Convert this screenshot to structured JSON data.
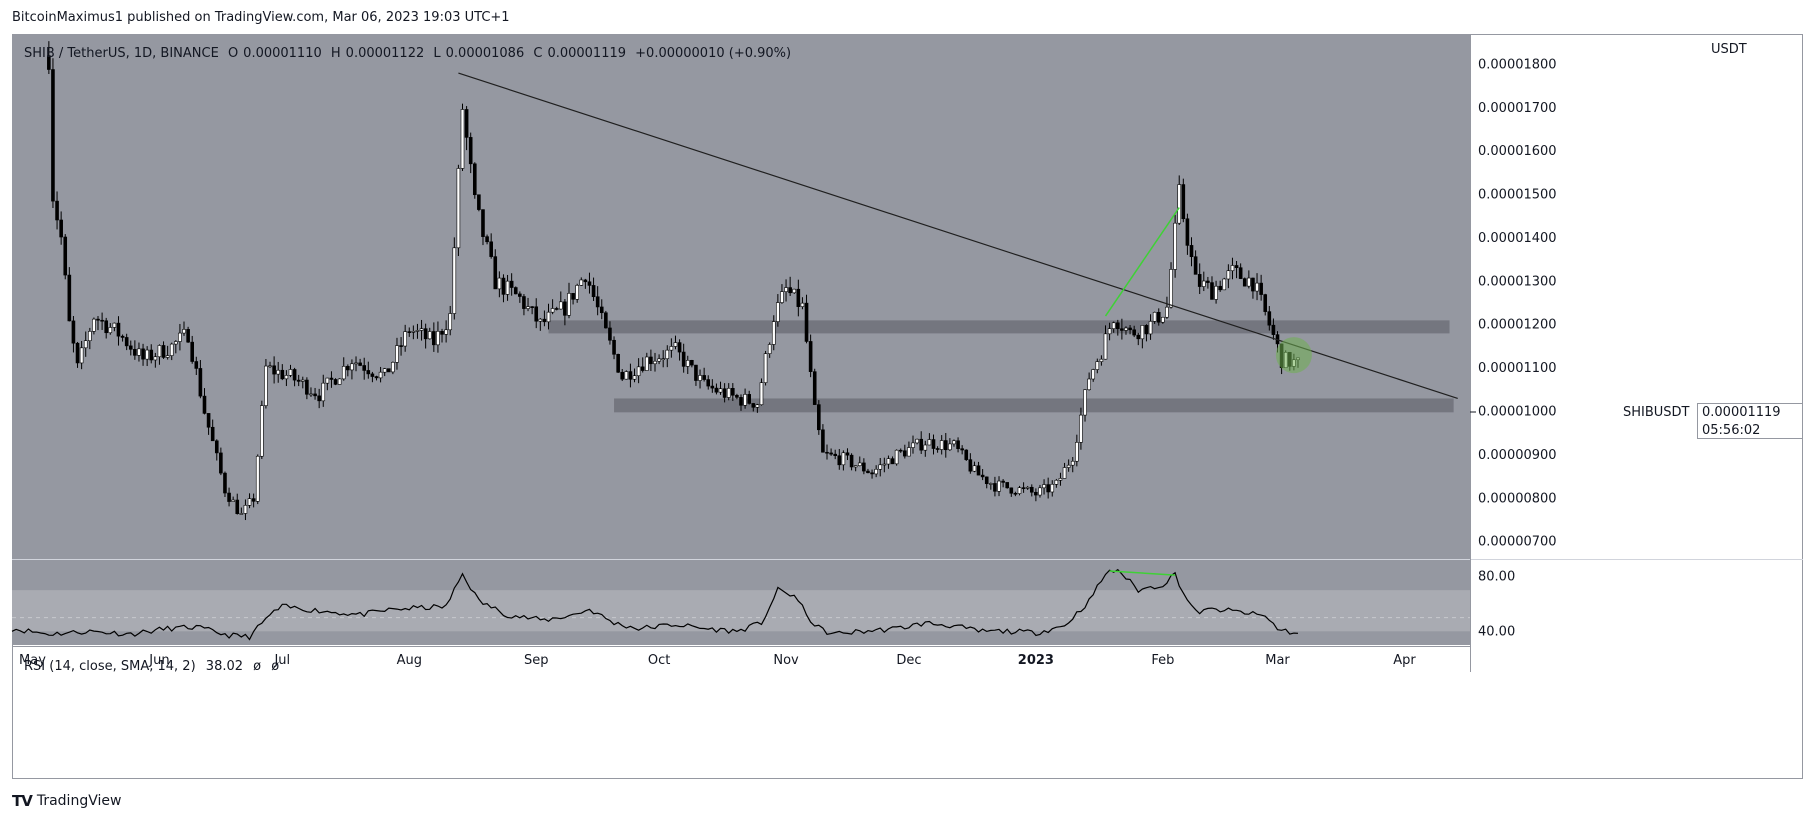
{
  "header": {
    "publish_line": "BitcoinMaximus1 published on TradingView.com, Mar 06, 2023 19:03 UTC+1"
  },
  "legend": {
    "symbol": "SHIB / TetherUS, 1D, BINANCE",
    "open_label": "O",
    "open": "0.00001110",
    "high_label": "H",
    "high": "0.00001122",
    "low_label": "L",
    "low": "0.00001086",
    "close_label": "C",
    "close": "0.00001119",
    "change": "+0.00000010 (+0.90%)"
  },
  "axis": {
    "currency": "USDT"
  },
  "price_tag": {
    "symbol": "SHIBUSDT",
    "price": "0.00001119",
    "countdown": "05:56:02"
  },
  "rsi_legend": {
    "title": "RSI (14, close, SMA, 14, 2)",
    "value": "38.02",
    "na1": "ø",
    "na2": "ø"
  },
  "footer": {
    "brand": "TradingView"
  },
  "colors": {
    "plot_bg": "#9598a1",
    "rsi_band": "#a9abb2",
    "candle": "#000000",
    "trendline": "#1f1f1f",
    "zone": "#6e7079",
    "divergence": "#3fd136",
    "circle": "#6fb052"
  },
  "chart_data": [
    {
      "type": "candlestick",
      "ylim": [
        6.6e-06,
        1.87e-05
      ],
      "y_ticks": [
        "0.00000700",
        "0.00000800",
        "0.00000900",
        "0.00001000",
        "0.00001100",
        "0.00001200",
        "0.00001300",
        "0.00001400",
        "0.00001500",
        "0.00001600",
        "0.00001700",
        "0.00001800"
      ],
      "x_ticks": [
        "May",
        "Jun",
        "Jul",
        "Aug",
        "Sep",
        "Oct",
        "Nov",
        "Dec",
        "2023",
        "Feb",
        "Mar",
        "Apr"
      ],
      "x_range": [
        "2022-04-26",
        "2023-04-17"
      ],
      "price_path": [
        [
          "2022-05-05",
          1.82e-05
        ],
        [
          "2022-05-06",
          1.5e-05
        ],
        [
          "2022-05-08",
          1.4e-05
        ],
        [
          "2022-05-10",
          1.2e-05
        ],
        [
          "2022-05-12",
          1.1e-05
        ],
        [
          "2022-05-16",
          1.22e-05
        ],
        [
          "2022-05-22",
          1.18e-05
        ],
        [
          "2022-05-28",
          1.12e-05
        ],
        [
          "2022-06-04",
          1.15e-05
        ],
        [
          "2022-06-08",
          1.18e-05
        ],
        [
          "2022-06-12",
          1e-05
        ],
        [
          "2022-06-17",
          8.2e-06
        ],
        [
          "2022-06-21",
          7.6e-06
        ],
        [
          "2022-06-24",
          8e-06
        ],
        [
          "2022-06-27",
          1.1e-05
        ],
        [
          "2022-07-03",
          1.08e-05
        ],
        [
          "2022-07-10",
          1.04e-05
        ],
        [
          "2022-07-18",
          1.12e-05
        ],
        [
          "2022-07-26",
          1.08e-05
        ],
        [
          "2022-08-01",
          1.19e-05
        ],
        [
          "2022-08-07",
          1.16e-05
        ],
        [
          "2022-08-11",
          1.22e-05
        ],
        [
          "2022-08-14",
          1.7e-05
        ],
        [
          "2022-08-17",
          1.48e-05
        ],
        [
          "2022-08-22",
          1.3e-05
        ],
        [
          "2022-08-28",
          1.26e-05
        ],
        [
          "2022-09-02",
          1.2e-05
        ],
        [
          "2022-09-08",
          1.24e-05
        ],
        [
          "2022-09-13",
          1.32e-05
        ],
        [
          "2022-09-18",
          1.18e-05
        ],
        [
          "2022-09-22",
          1.08e-05
        ],
        [
          "2022-09-28",
          1.12e-05
        ],
        [
          "2022-10-05",
          1.14e-05
        ],
        [
          "2022-10-12",
          1.06e-05
        ],
        [
          "2022-10-20",
          1.03e-05
        ],
        [
          "2022-10-25",
          1.02e-05
        ],
        [
          "2022-10-29",
          1.22e-05
        ],
        [
          "2022-11-01",
          1.28e-05
        ],
        [
          "2022-11-05",
          1.24e-05
        ],
        [
          "2022-11-08",
          1e-05
        ],
        [
          "2022-11-10",
          9e-06
        ],
        [
          "2022-11-15",
          8.9e-06
        ],
        [
          "2022-11-22",
          8.6e-06
        ],
        [
          "2022-11-28",
          9e-06
        ],
        [
          "2022-12-05",
          9.3e-06
        ],
        [
          "2022-12-12",
          9.2e-06
        ],
        [
          "2022-12-17",
          8.6e-06
        ],
        [
          "2022-12-22",
          8.3e-06
        ],
        [
          "2022-12-28",
          8.2e-06
        ],
        [
          "2023-01-01",
          8.1e-06
        ],
        [
          "2023-01-06",
          8.3e-06
        ],
        [
          "2023-01-10",
          9e-06
        ],
        [
          "2023-01-14",
          1.08e-05
        ],
        [
          "2023-01-17",
          1.14e-05
        ],
        [
          "2023-01-20",
          1.22e-05
        ],
        [
          "2023-01-24",
          1.18e-05
        ],
        [
          "2023-01-29",
          1.2e-05
        ],
        [
          "2023-02-02",
          1.24e-05
        ],
        [
          "2023-02-05",
          1.5e-05
        ],
        [
          "2023-02-09",
          1.3e-05
        ],
        [
          "2023-02-13",
          1.28e-05
        ],
        [
          "2023-02-18",
          1.32e-05
        ],
        [
          "2023-02-23",
          1.3e-05
        ],
        [
          "2023-02-27",
          1.2e-05
        ],
        [
          "2023-03-02",
          1.12e-05
        ],
        [
          "2023-03-06",
          1.11e-05
        ]
      ],
      "trendline": {
        "from": [
          "2022-08-13",
          1.78e-05
        ],
        "to": [
          "2023-04-14",
          1.03e-05
        ]
      },
      "zones": [
        {
          "from": "2022-09-04",
          "to": "2023-04-12",
          "low": 1.18e-05,
          "high": 1.21e-05
        },
        {
          "from": "2022-09-20",
          "to": "2023-04-13",
          "low": 9.98e-06,
          "high": 1.03e-05
        }
      ],
      "divergence_line": {
        "from": [
          "2023-01-18",
          1.22e-05
        ],
        "to": [
          "2023-02-05",
          1.47e-05
        ]
      },
      "highlight_circle": [
        "2023-03-05",
        1.13e-05
      ]
    },
    {
      "type": "line",
      "title": "RSI (14, close, SMA, 14, 2)",
      "ylim": [
        30,
        92
      ],
      "y_ticks": [
        "40.00",
        "80.00"
      ],
      "band": [
        40,
        70
      ],
      "midline": 50,
      "rsi_path": [
        [
          "2022-04-26",
          42
        ],
        [
          "2022-05-05",
          38
        ],
        [
          "2022-05-15",
          40
        ],
        [
          "2022-05-25",
          38
        ],
        [
          "2022-06-03",
          42
        ],
        [
          "2022-06-10",
          43
        ],
        [
          "2022-06-18",
          37
        ],
        [
          "2022-06-23",
          36
        ],
        [
          "2022-06-28",
          52
        ],
        [
          "2022-07-01",
          58
        ],
        [
          "2022-07-10",
          55
        ],
        [
          "2022-07-20",
          52
        ],
        [
          "2022-07-28",
          56
        ],
        [
          "2022-08-03",
          57
        ],
        [
          "2022-08-10",
          58
        ],
        [
          "2022-08-14",
          82
        ],
        [
          "2022-08-18",
          62
        ],
        [
          "2022-08-25",
          52
        ],
        [
          "2022-09-03",
          48
        ],
        [
          "2022-09-10",
          52
        ],
        [
          "2022-09-14",
          56
        ],
        [
          "2022-09-20",
          46
        ],
        [
          "2022-09-26",
          42
        ],
        [
          "2022-10-05",
          45
        ],
        [
          "2022-10-12",
          42
        ],
        [
          "2022-10-20",
          40
        ],
        [
          "2022-10-26",
          46
        ],
        [
          "2022-10-30",
          70
        ],
        [
          "2022-11-03",
          66
        ],
        [
          "2022-11-08",
          44
        ],
        [
          "2022-11-12",
          38
        ],
        [
          "2022-11-20",
          40
        ],
        [
          "2022-11-28",
          42
        ],
        [
          "2022-12-05",
          46
        ],
        [
          "2022-12-12",
          44
        ],
        [
          "2022-12-18",
          40
        ],
        [
          "2022-12-25",
          40
        ],
        [
          "2023-01-01",
          39
        ],
        [
          "2023-01-08",
          44
        ],
        [
          "2023-01-14",
          62
        ],
        [
          "2023-01-18",
          82
        ],
        [
          "2023-01-21",
          85
        ],
        [
          "2023-01-26",
          70
        ],
        [
          "2023-02-01",
          74
        ],
        [
          "2023-02-04",
          82
        ],
        [
          "2023-02-06",
          68
        ],
        [
          "2023-02-09",
          54
        ],
        [
          "2023-02-14",
          56
        ],
        [
          "2023-02-20",
          54
        ],
        [
          "2023-02-26",
          51
        ],
        [
          "2023-03-01",
          42
        ],
        [
          "2023-03-06",
          38
        ]
      ],
      "divergence_line": {
        "from": [
          "2023-01-19",
          84
        ],
        "to": [
          "2023-02-04",
          81
        ]
      }
    }
  ]
}
